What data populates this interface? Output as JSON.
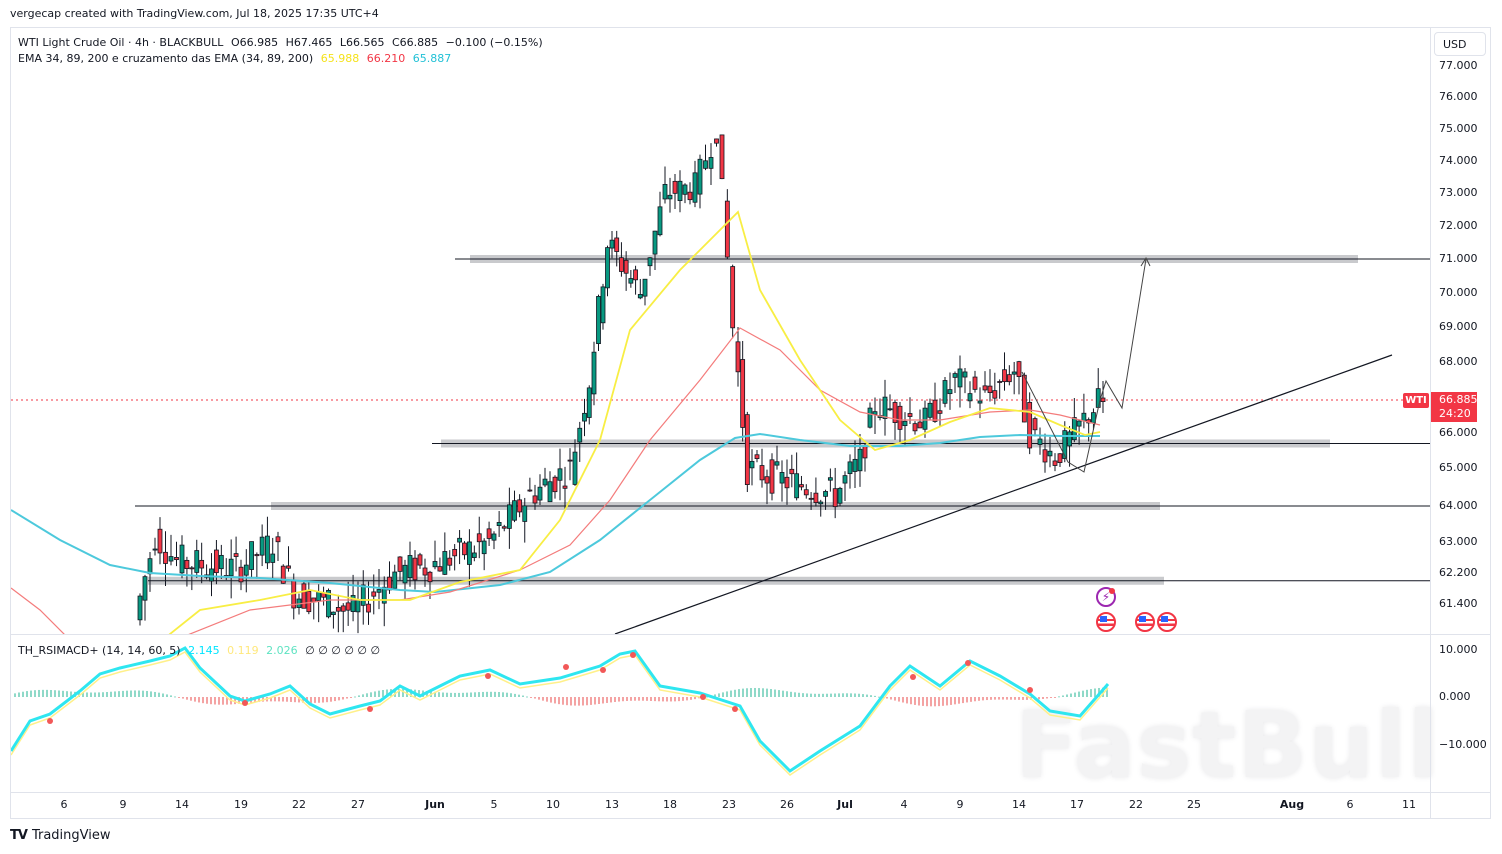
{
  "credit": "vergecap created with TradingView.com, Jul 18, 2025 17:35 UTC+4",
  "legend": {
    "symbol_line": "WTI Light Crude Oil · 4h · BLACKBULL",
    "open": "O66.985",
    "high": "H67.465",
    "low": "L66.565",
    "close": "C66.885",
    "change": "−0.100 (−0.15%)",
    "ema_title": "EMA 34, 89, 200 e cruzamento das EMA (34, 89, 200)",
    "ema34": "65.988",
    "ema89": "66.210",
    "ema200": "65.887",
    "ema34_color": "#f5e21b",
    "ema89_color": "#f23645",
    "ema200_color": "#22c1d6"
  },
  "indicator": {
    "title": "TH_RSIMACD+ (14, 14, 60, 5)",
    "v1": "2.145",
    "v2": "0.119",
    "v3": "2.026",
    "v1_color": "#00e5ff",
    "v2_color": "#ffe87c",
    "v3_color": "#5fe3c2",
    "nulls": "∅  ∅  ∅  ∅  ∅  ∅",
    "y_labels": [
      "10.000",
      "0.000",
      "−10.000"
    ]
  },
  "price_axis": {
    "currency": "USD",
    "labels": [
      "77.000",
      "76.000",
      "75.000",
      "74.000",
      "73.000",
      "72.000",
      "71.000",
      "70.000",
      "69.000",
      "68.000",
      "66.000",
      "65.000",
      "64.000",
      "63.000",
      "62.200",
      "61.400"
    ]
  },
  "last_price": {
    "symbol": "WTI",
    "price": "66.885",
    "countdown": "24:20",
    "color": "#f23645"
  },
  "time_axis": {
    "labels": [
      {
        "text": "6",
        "bold": false
      },
      {
        "text": "9",
        "bold": false
      },
      {
        "text": "14",
        "bold": false
      },
      {
        "text": "19",
        "bold": false
      },
      {
        "text": "22",
        "bold": false
      },
      {
        "text": "27",
        "bold": false
      },
      {
        "text": "Jun",
        "bold": true
      },
      {
        "text": "5",
        "bold": false
      },
      {
        "text": "10",
        "bold": false
      },
      {
        "text": "13",
        "bold": false
      },
      {
        "text": "18",
        "bold": false
      },
      {
        "text": "23",
        "bold": false
      },
      {
        "text": "26",
        "bold": false
      },
      {
        "text": "Jul",
        "bold": true
      },
      {
        "text": "4",
        "bold": false
      },
      {
        "text": "9",
        "bold": false
      },
      {
        "text": "14",
        "bold": false
      },
      {
        "text": "17",
        "bold": false
      },
      {
        "text": "22",
        "bold": false
      },
      {
        "text": "25",
        "bold": false
      },
      {
        "text": "Aug",
        "bold": true
      },
      {
        "text": "6",
        "bold": false
      },
      {
        "text": "11",
        "bold": false
      }
    ]
  },
  "branding": {
    "logo_mark": "TV",
    "logo_text": "TradingView",
    "watermark": "FastBull"
  },
  "colors": {
    "up": "#089981",
    "down": "#f23645",
    "zone": "#c9cacd",
    "hist_up": "#8fd9c8",
    "hist_down": "#f4a3a3"
  },
  "chart_data": {
    "type": "candlestick",
    "title": "WTI Light Crude Oil · 4h · BLACKBULL",
    "xlabel": "",
    "ylabel": "USD",
    "ylim": [
      60.8,
      77.5
    ],
    "x_ticks": [
      "6",
      "9",
      "14",
      "19",
      "22",
      "27",
      "Jun",
      "5",
      "10",
      "13",
      "18",
      "23",
      "26",
      "Jul",
      "4",
      "9",
      "14",
      "17",
      "22",
      "25",
      "Aug",
      "6",
      "11"
    ],
    "ohlc_last": {
      "open": 66.985,
      "high": 67.465,
      "low": 66.565,
      "close": 66.885,
      "change": -0.1,
      "change_pct": -0.15
    },
    "approx_close_path": [
      {
        "date": "May 9",
        "close": 61.0
      },
      {
        "date": "May 12",
        "close": 63.2
      },
      {
        "date": "May 14",
        "close": 62.5
      },
      {
        "date": "May 19",
        "close": 62.3
      },
      {
        "date": "May 21",
        "close": 63.0
      },
      {
        "date": "May 22",
        "close": 61.7
      },
      {
        "date": "May 27",
        "close": 61.2
      },
      {
        "date": "May 30",
        "close": 62.2
      },
      {
        "date": "Jun 2",
        "close": 62.4
      },
      {
        "date": "Jun 5",
        "close": 63.0
      },
      {
        "date": "Jun 9",
        "close": 64.3
      },
      {
        "date": "Jun 11",
        "close": 65.0
      },
      {
        "date": "Jun 12",
        "close": 67.5
      },
      {
        "date": "Jun 13",
        "close": 71.5
      },
      {
        "date": "Jun 16",
        "close": 70.0
      },
      {
        "date": "Jun 18",
        "close": 73.0
      },
      {
        "date": "Jun 20",
        "close": 73.2
      },
      {
        "date": "Jun 22",
        "close": 75.0
      },
      {
        "date": "Jun 23",
        "close": 69.0
      },
      {
        "date": "Jun 24",
        "close": 65.0
      },
      {
        "date": "Jun 26",
        "close": 64.7
      },
      {
        "date": "Jun 30",
        "close": 64.3
      },
      {
        "date": "Jul 2",
        "close": 65.2
      },
      {
        "date": "Jul 3",
        "close": 66.8
      },
      {
        "date": "Jul 7",
        "close": 66.3
      },
      {
        "date": "Jul 9",
        "close": 67.5
      },
      {
        "date": "Jul 11",
        "close": 67.0
      },
      {
        "date": "Jul 14",
        "close": 67.8
      },
      {
        "date": "Jul 15",
        "close": 66.0
      },
      {
        "date": "Jul 16",
        "close": 65.3
      },
      {
        "date": "Jul 18",
        "close": 66.885
      }
    ],
    "series": [
      {
        "name": "EMA 34",
        "color": "#f5e21b",
        "last": 65.988
      },
      {
        "name": "EMA 89",
        "color": "#f23645",
        "last": 66.21
      },
      {
        "name": "EMA 200",
        "color": "#22c1d6",
        "last": 65.887
      }
    ],
    "horizontal_levels": [
      71.0,
      65.7,
      64.0,
      62.0
    ],
    "annotations": [
      "Rising trendline from ~61 (early Jun) through ~65 (Jul 17)",
      "Projected path arrow to 71.000 target"
    ],
    "subplot": {
      "name": "TH_RSIMACD+ (14, 14, 60, 5)",
      "ylim": [
        -15,
        12
      ],
      "values_last": [
        2.145,
        0.119,
        2.026
      ]
    }
  }
}
